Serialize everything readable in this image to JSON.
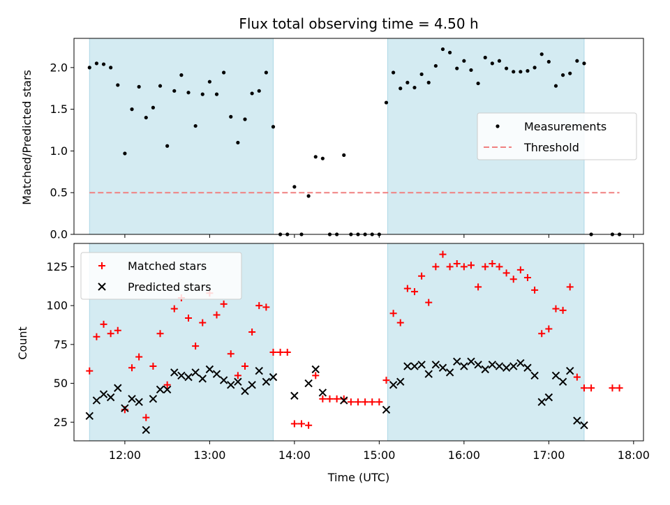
{
  "title": "Flux total observing time = 4.50 h",
  "colors": {
    "shade": "#add8e6",
    "measurements": "#000000",
    "threshold": "#f08080",
    "matched": "#ff0000",
    "predicted": "#000000"
  },
  "chart_data": [
    {
      "type": "scatter",
      "title": "Flux total observing time = 4.50 h",
      "xlabel": "",
      "ylabel": "Matched/Predicted stars",
      "xlim": [
        "11:24",
        "18:07"
      ],
      "ylim": [
        0,
        2.35
      ],
      "yticks": [
        0.0,
        0.5,
        1.0,
        1.5,
        2.0
      ],
      "ytick_labels": [
        "0.0",
        "0.5",
        "1.0",
        "1.5",
        "2.0"
      ],
      "shaded_intervals": [
        [
          "11:35",
          "13:45"
        ],
        [
          "15:06",
          "17:25"
        ]
      ],
      "legend": {
        "placement": "right",
        "entries": [
          "Measurements",
          "Threshold"
        ]
      },
      "threshold": {
        "name": "Threshold",
        "y": 0.5,
        "x": [
          "11:35",
          "17:50"
        ]
      },
      "series": [
        {
          "name": "Measurements",
          "x": [
            "11:35",
            "11:40",
            "11:45",
            "11:50",
            "11:55",
            "12:00",
            "12:05",
            "12:10",
            "12:15",
            "12:20",
            "12:25",
            "12:30",
            "12:35",
            "12:40",
            "12:45",
            "12:50",
            "12:55",
            "13:00",
            "13:05",
            "13:10",
            "13:15",
            "13:20",
            "13:25",
            "13:30",
            "13:35",
            "13:40",
            "13:45",
            "13:50",
            "13:55",
            "14:00",
            "14:05",
            "14:10",
            "14:15",
            "14:20",
            "14:25",
            "14:30",
            "14:35",
            "14:40",
            "14:45",
            "14:50",
            "14:55",
            "15:00",
            "15:05",
            "15:10",
            "15:15",
            "15:20",
            "15:25",
            "15:30",
            "15:35",
            "15:40",
            "15:45",
            "15:50",
            "15:55",
            "16:00",
            "16:05",
            "16:10",
            "16:15",
            "16:20",
            "16:25",
            "16:30",
            "16:35",
            "16:40",
            "16:45",
            "16:50",
            "16:55",
            "17:00",
            "17:05",
            "17:10",
            "17:15",
            "17:20",
            "17:25",
            "17:30",
            "17:45",
            "17:50"
          ],
          "y": [
            2.0,
            2.05,
            2.04,
            2.0,
            1.79,
            0.97,
            1.5,
            1.77,
            1.4,
            1.52,
            1.78,
            1.06,
            1.72,
            1.91,
            1.7,
            1.3,
            1.68,
            1.83,
            1.68,
            1.94,
            1.41,
            1.1,
            1.38,
            1.69,
            1.72,
            1.94,
            1.29,
            0.0,
            0.0,
            0.57,
            0.0,
            0.46,
            0.93,
            0.91,
            0.0,
            0.0,
            0.95,
            0.0,
            0.0,
            0.0,
            0.0,
            0.0,
            1.58,
            1.94,
            1.75,
            1.82,
            1.76,
            1.92,
            1.82,
            2.02,
            2.22,
            2.18,
            1.99,
            2.08,
            1.97,
            1.81,
            2.12,
            2.05,
            2.08,
            1.99,
            1.95,
            1.95,
            1.96,
            2.0,
            2.16,
            2.07,
            1.78,
            1.91,
            1.93,
            2.08,
            2.05,
            0.0,
            0.0,
            0.0
          ]
        }
      ]
    },
    {
      "type": "scatter",
      "title": "",
      "xlabel": "Time (UTC)",
      "ylabel": "Count",
      "xlim": [
        "11:24",
        "18:07"
      ],
      "xticks": [
        "12:00",
        "13:00",
        "14:00",
        "15:00",
        "16:00",
        "17:00",
        "18:00"
      ],
      "ylim": [
        13,
        140
      ],
      "yticks": [
        25,
        50,
        75,
        100,
        125
      ],
      "ytick_labels": [
        "25",
        "50",
        "75",
        "100",
        "125"
      ],
      "shaded_intervals": [
        [
          "11:35",
          "13:45"
        ],
        [
          "15:06",
          "17:25"
        ]
      ],
      "legend": {
        "placement": "top-left",
        "entries": [
          "Matched stars",
          "Predicted stars"
        ]
      },
      "series": [
        {
          "name": "Matched stars",
          "x": [
            "11:35",
            "11:40",
            "11:45",
            "11:50",
            "11:55",
            "12:00",
            "12:05",
            "12:10",
            "12:15",
            "12:20",
            "12:25",
            "12:30",
            "12:35",
            "12:40",
            "12:45",
            "12:50",
            "12:55",
            "13:00",
            "13:05",
            "13:10",
            "13:15",
            "13:20",
            "13:25",
            "13:30",
            "13:35",
            "13:40",
            "13:45",
            "13:50",
            "13:55",
            "14:00",
            "14:05",
            "14:10",
            "14:15",
            "14:20",
            "14:25",
            "14:30",
            "14:35",
            "14:40",
            "14:45",
            "14:50",
            "14:55",
            "15:00",
            "15:05",
            "15:10",
            "15:15",
            "15:20",
            "15:25",
            "15:30",
            "15:35",
            "15:40",
            "15:45",
            "15:50",
            "15:55",
            "16:00",
            "16:05",
            "16:10",
            "16:15",
            "16:20",
            "16:25",
            "16:30",
            "16:35",
            "16:40",
            "16:45",
            "16:50",
            "16:55",
            "17:00",
            "17:05",
            "17:10",
            "17:15",
            "17:20",
            "17:25",
            "17:30",
            "17:45",
            "17:50"
          ],
          "y": [
            58,
            80,
            88,
            82,
            84,
            33,
            60,
            67,
            28,
            61,
            82,
            49,
            98,
            105,
            92,
            74,
            89,
            108,
            94,
            101,
            69,
            55,
            61,
            83,
            100,
            99,
            70,
            70,
            70,
            24,
            24,
            23,
            55,
            40,
            40,
            40,
            40,
            38,
            38,
            38,
            38,
            38,
            52,
            95,
            89,
            111,
            109,
            119,
            102,
            125,
            133,
            125,
            127,
            125,
            126,
            112,
            125,
            127,
            125,
            121,
            117,
            123,
            118,
            110,
            82,
            85,
            98,
            97,
            112,
            54,
            47,
            47,
            47,
            47
          ]
        },
        {
          "name": "Predicted stars",
          "x": [
            "11:35",
            "11:40",
            "11:45",
            "11:50",
            "11:55",
            "12:00",
            "12:05",
            "12:10",
            "12:15",
            "12:20",
            "12:25",
            "12:30",
            "12:35",
            "12:40",
            "12:45",
            "12:50",
            "12:55",
            "13:00",
            "13:05",
            "13:10",
            "13:15",
            "13:20",
            "13:25",
            "13:30",
            "13:35",
            "13:40",
            "13:45",
            "14:00",
            "14:10",
            "14:15",
            "14:20",
            "14:35",
            "15:05",
            "15:10",
            "15:15",
            "15:20",
            "15:25",
            "15:30",
            "15:35",
            "15:40",
            "15:45",
            "15:50",
            "15:55",
            "16:00",
            "16:05",
            "16:10",
            "16:15",
            "16:20",
            "16:25",
            "16:30",
            "16:35",
            "16:40",
            "16:45",
            "16:50",
            "16:55",
            "17:00",
            "17:05",
            "17:10",
            "17:15",
            "17:20",
            "17:25"
          ],
          "y": [
            29,
            39,
            43,
            41,
            47,
            34,
            40,
            38,
            20,
            40,
            46,
            46,
            57,
            55,
            54,
            57,
            53,
            59,
            56,
            52,
            49,
            51,
            45,
            49,
            58,
            51,
            54,
            42,
            50,
            59,
            44,
            39,
            33,
            49,
            51,
            61,
            61,
            62,
            56,
            62,
            60,
            57,
            64,
            61,
            64,
            62,
            59,
            62,
            61,
            60,
            61,
            63,
            60,
            55,
            38,
            41,
            55,
            51,
            58,
            26,
            23
          ]
        }
      ]
    }
  ]
}
